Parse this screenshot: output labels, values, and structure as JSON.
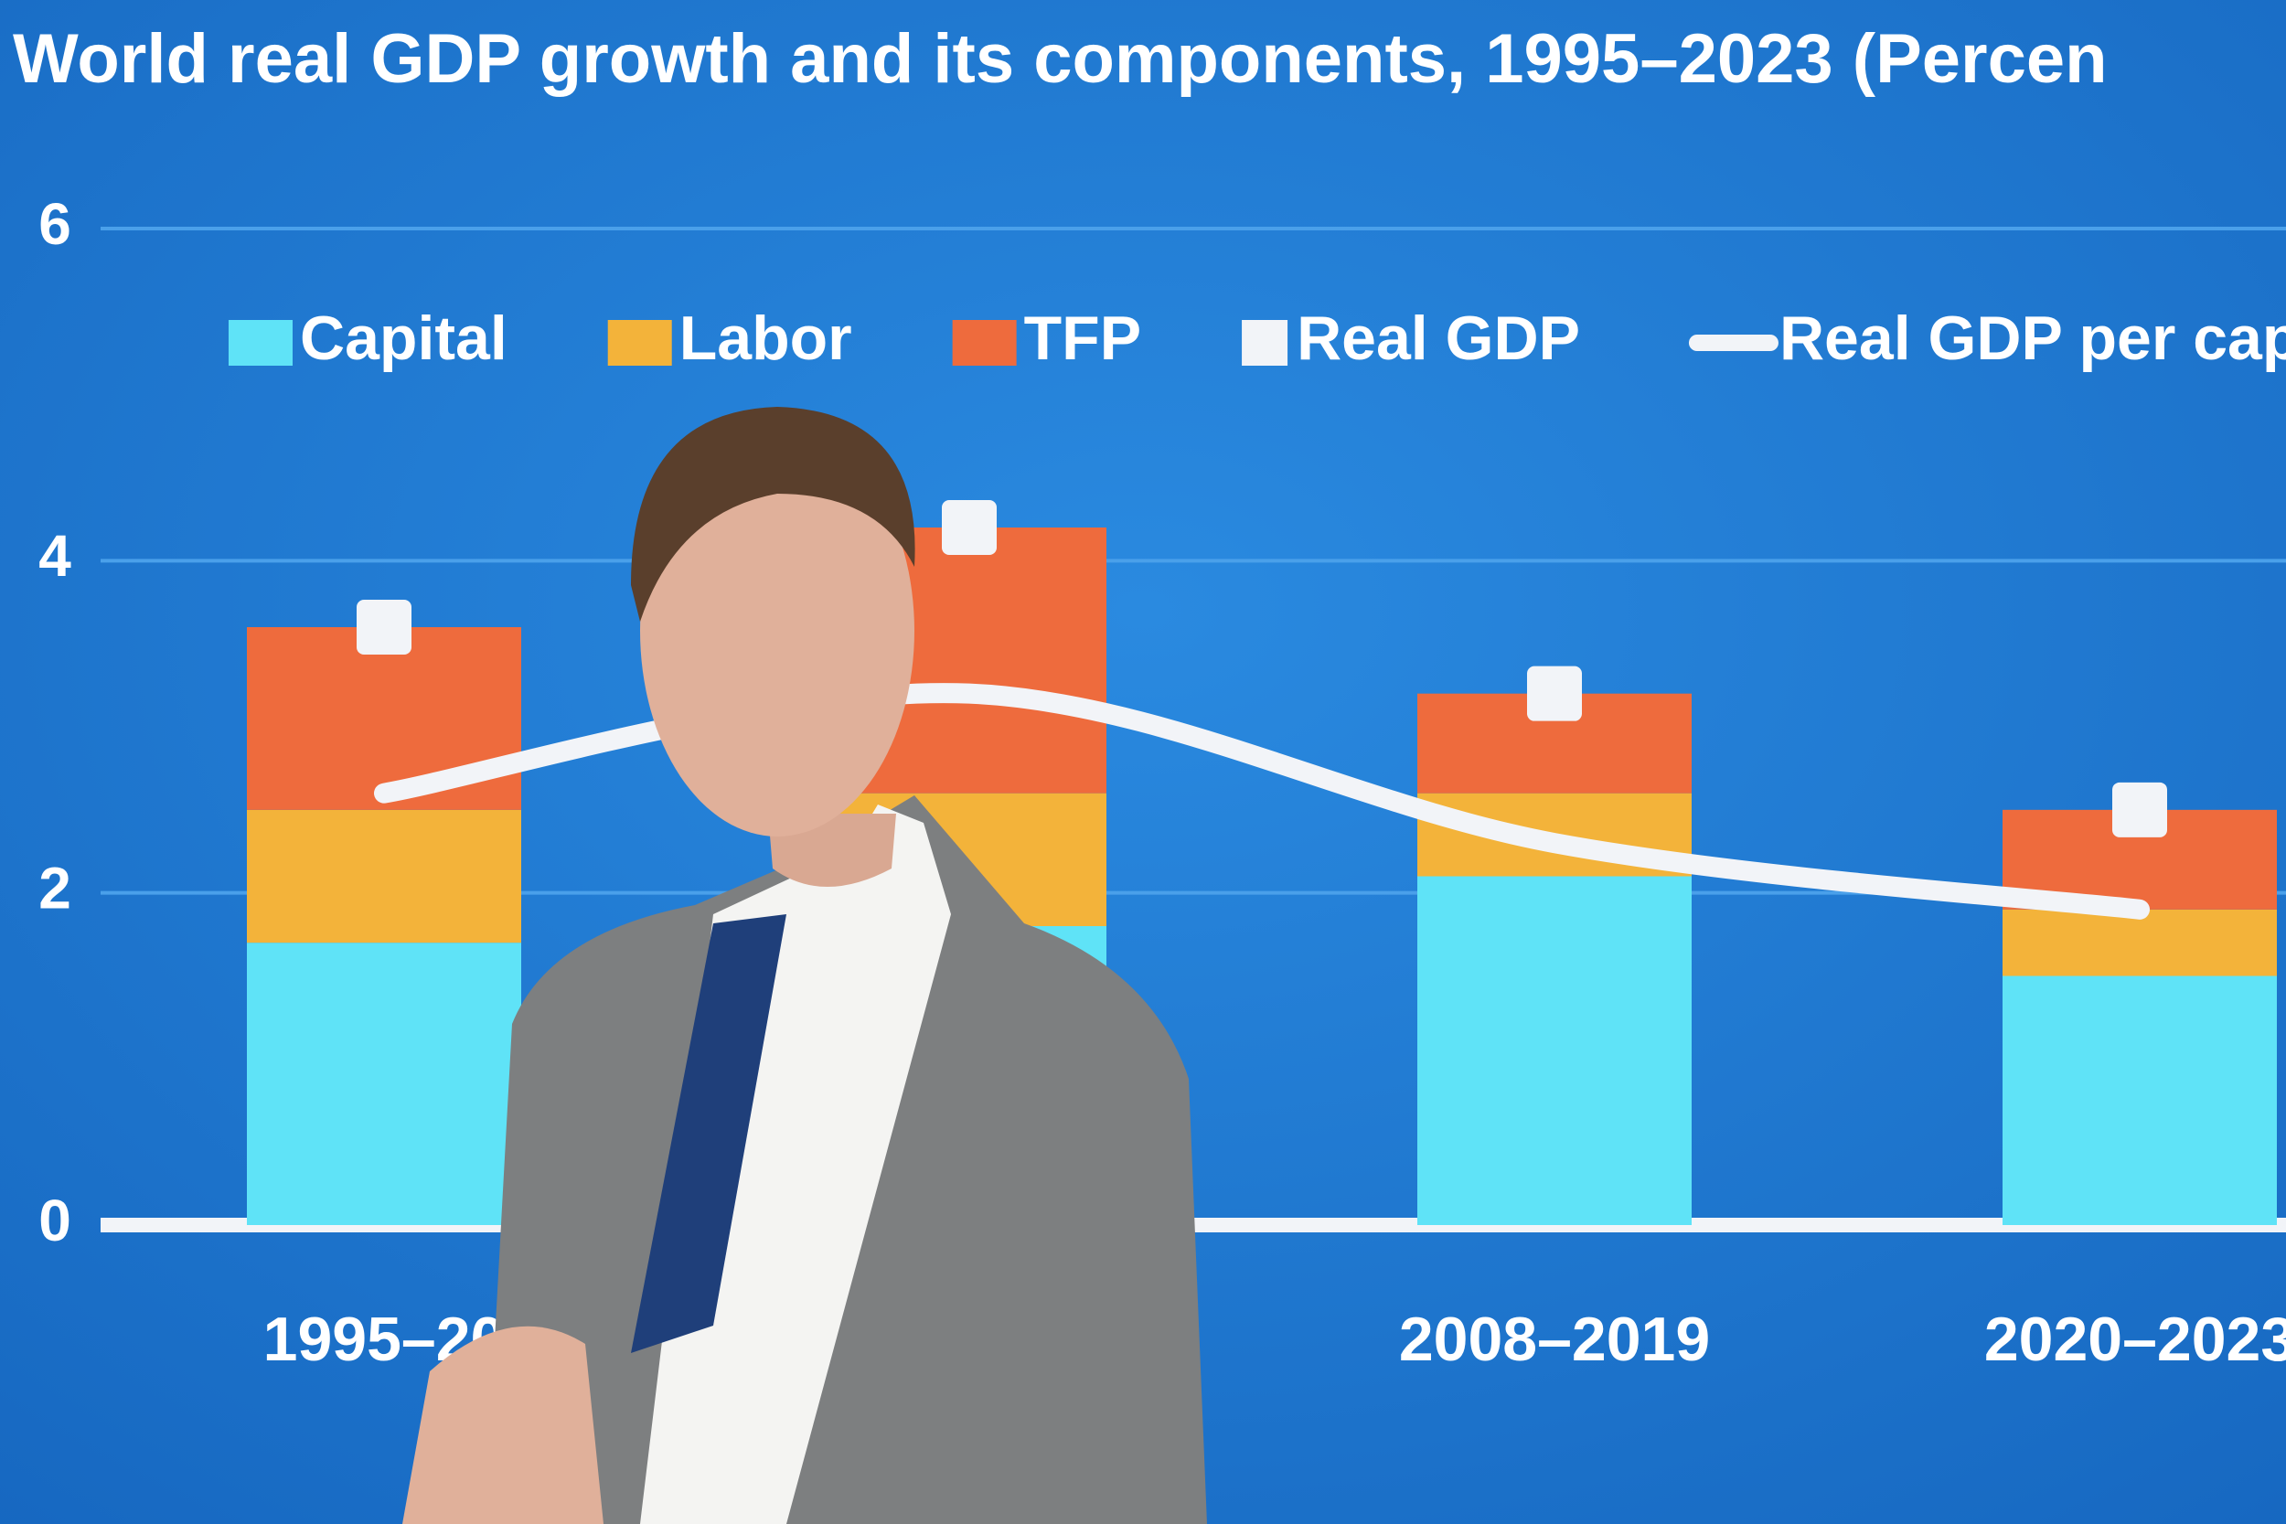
{
  "chart_data": {
    "type": "bar",
    "stacked": true,
    "title": "World real GDP growth and its components, 1995–2023 (Percen",
    "categories": [
      "1995–20",
      null,
      "2008–2019",
      "2020–2023"
    ],
    "series": [
      {
        "name": "Capital",
        "type": "bar",
        "color": "#5fe3f7",
        "values": [
          1.7,
          1.8,
          2.1,
          1.5
        ]
      },
      {
        "name": "Labor",
        "type": "bar",
        "color": "#f3b33a",
        "values": [
          0.8,
          0.8,
          0.5,
          0.4
        ]
      },
      {
        "name": "TFP",
        "type": "bar",
        "color": "#ee6b3d",
        "values": [
          1.1,
          1.6,
          0.6,
          0.6
        ]
      },
      {
        "name": "Real GDP",
        "type": "marker",
        "color": "#f2f4f8",
        "values": [
          3.6,
          4.2,
          3.2,
          2.5
        ]
      },
      {
        "name": "Real GDP per capi",
        "type": "line",
        "color": "#f2f4f8",
        "values": [
          2.6,
          3.2,
          2.3,
          1.9
        ]
      }
    ],
    "ylim": [
      0,
      6
    ],
    "yticks": [
      0,
      2,
      4,
      6
    ],
    "grid": true
  }
}
